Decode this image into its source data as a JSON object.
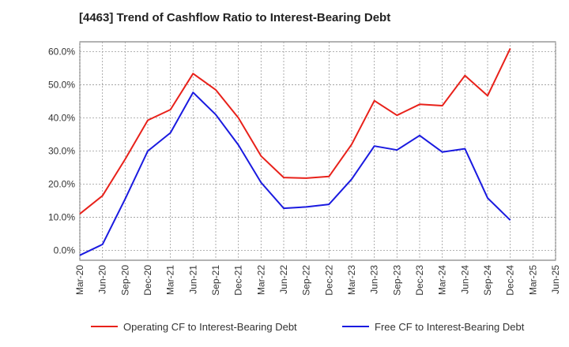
{
  "chart_data": {
    "type": "line",
    "title": "[4463]  Trend of Cashflow Ratio to Interest-Bearing Debt",
    "xlabel": "",
    "ylabel": "",
    "categories": [
      "Mar-20",
      "Jun-20",
      "Sep-20",
      "Dec-20",
      "Mar-21",
      "Jun-21",
      "Sep-21",
      "Dec-21",
      "Mar-22",
      "Jun-22",
      "Sep-22",
      "Dec-22",
      "Mar-23",
      "Jun-23",
      "Sep-23",
      "Dec-23",
      "Mar-24",
      "Jun-24",
      "Sep-24",
      "Dec-24",
      "Mar-25",
      "Jun-25"
    ],
    "ylim": [
      -3,
      63
    ],
    "yticks": [
      0,
      10,
      20,
      30,
      40,
      50,
      60
    ],
    "ytick_labels": [
      "0.0%",
      "10.0%",
      "20.0%",
      "30.0%",
      "40.0%",
      "50.0%",
      "60.0%"
    ],
    "grid": true,
    "legend_position": "bottom",
    "series": [
      {
        "name": "Operating CF to Interest-Bearing Debt",
        "color": "#e8211a",
        "values": [
          11.0,
          16.5,
          27.5,
          39.3,
          42.5,
          53.4,
          48.5,
          40.0,
          28.5,
          22.0,
          21.8,
          22.3,
          32.0,
          45.2,
          40.8,
          44.1,
          43.7,
          52.8,
          46.7,
          61.0,
          null,
          null
        ]
      },
      {
        "name": "Free CF to Interest-Bearing Debt",
        "color": "#1a1ae0",
        "values": [
          -1.5,
          1.8,
          15.5,
          30.0,
          35.5,
          47.7,
          41.0,
          31.8,
          20.5,
          12.7,
          13.1,
          13.9,
          21.5,
          31.5,
          30.3,
          34.7,
          29.7,
          30.7,
          15.8,
          9.1,
          null,
          null
        ]
      }
    ]
  }
}
